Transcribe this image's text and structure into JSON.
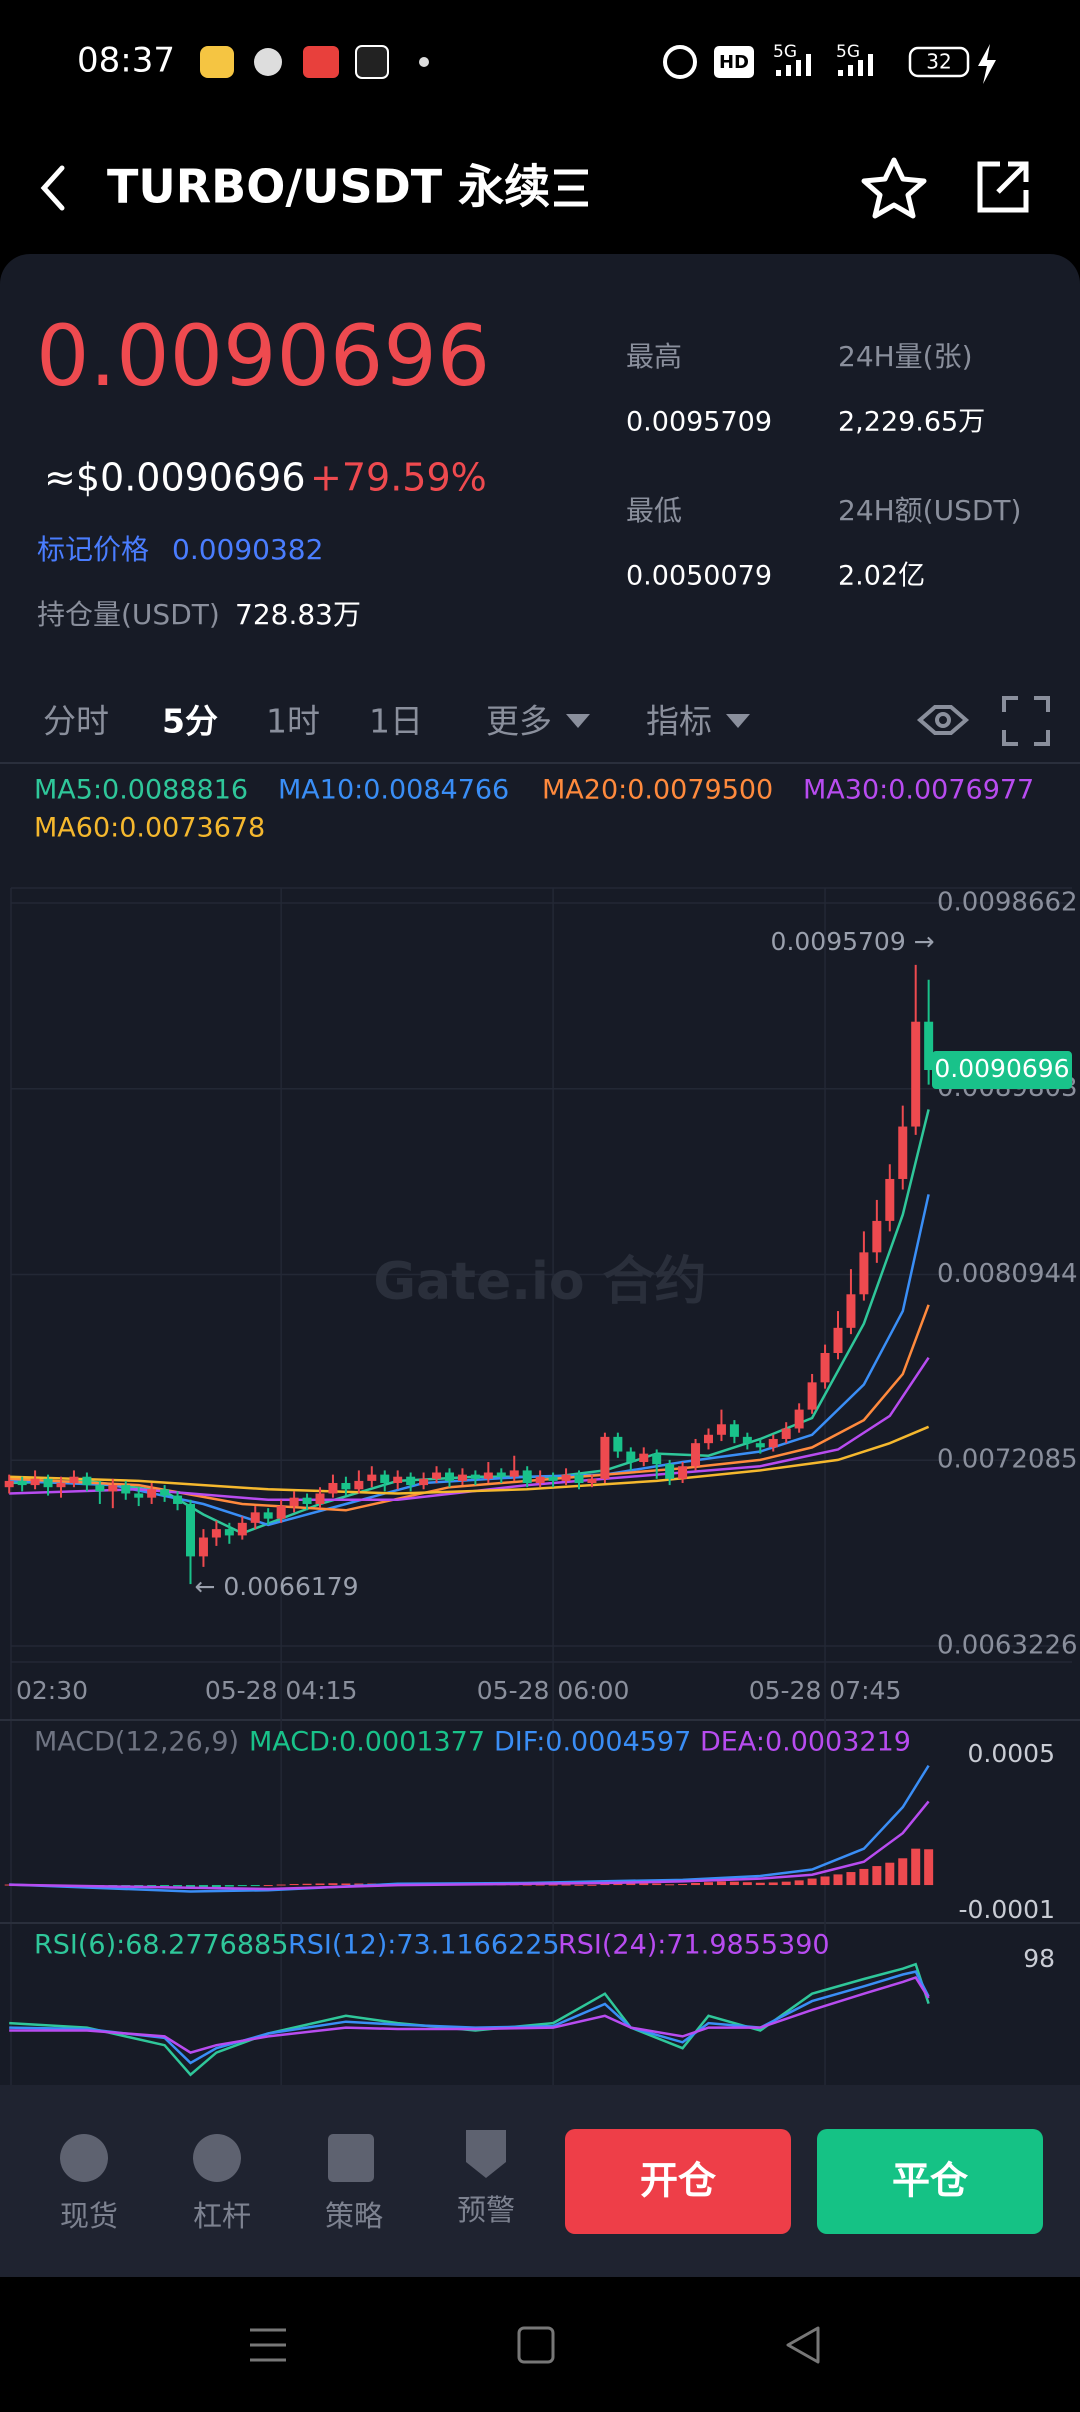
{
  "status_bar": {
    "time": "08:37",
    "network_a": "5G",
    "network_b": "5G",
    "hd": "HD",
    "battery": "32"
  },
  "header": {
    "title": "TURBO/USDT 永续"
  },
  "ticker": {
    "last_price": "0.0090696",
    "usd_price": "≈$0.0090696",
    "change": "+79.59%",
    "mark_price_label": "标记价格",
    "mark_price": "0.0090382",
    "open_interest_label": "持仓量(USDT)",
    "open_interest": "728.83万",
    "stats": [
      {
        "label": "最高",
        "value": "0.0095709"
      },
      {
        "label": "24H量(张)",
        "value": "2,229.65万"
      },
      {
        "label": "最低",
        "value": "0.0050079"
      },
      {
        "label": "24H额(USDT)",
        "value": "2.02亿"
      }
    ]
  },
  "tabs": [
    "分时",
    "5分",
    "1时",
    "1日",
    "更多",
    "指标"
  ],
  "chart_data": [
    {
      "type": "candlestick",
      "watermark": "Gate.io 合约",
      "up_color": "#ee4a4f",
      "down_color": "#19c28a",
      "ylim": [
        0.0062463,
        0.0099377
      ],
      "yticks": [
        0.0098662,
        0.0089803,
        0.0080944,
        0.0072085,
        0.0063226
      ],
      "xticks": [
        {
          "value": 0,
          "label": "02:30"
        },
        {
          "value": 21,
          "label": "05-28 04:15"
        },
        {
          "value": 42,
          "label": "05-28 06:00"
        },
        {
          "value": 63,
          "label": "05-28 07:45"
        }
      ],
      "annotations": [
        {
          "value": 0.0095709,
          "label": "0.0095709 →"
        },
        {
          "value": 0.0066179,
          "label": "← 0.0066179"
        }
      ],
      "candles": [
        {
          "open": 0.00708,
          "high": 0.00714,
          "low": 0.00705,
          "close": 0.00711
        },
        {
          "open": 0.00711,
          "high": 0.00713,
          "low": 0.00706,
          "close": 0.00709
        },
        {
          "open": 0.00709,
          "high": 0.00716,
          "low": 0.00707,
          "close": 0.00712
        },
        {
          "open": 0.00712,
          "high": 0.00714,
          "low": 0.00704,
          "close": 0.00708
        },
        {
          "open": 0.00708,
          "high": 0.00713,
          "low": 0.00703,
          "close": 0.0071
        },
        {
          "open": 0.0071,
          "high": 0.00716,
          "low": 0.00708,
          "close": 0.00713
        },
        {
          "open": 0.00713,
          "high": 0.00715,
          "low": 0.00706,
          "close": 0.00709
        },
        {
          "open": 0.00709,
          "high": 0.00711,
          "low": 0.007,
          "close": 0.00706
        },
        {
          "open": 0.00706,
          "high": 0.00712,
          "low": 0.00698,
          "close": 0.00709
        },
        {
          "open": 0.00709,
          "high": 0.00711,
          "low": 0.00702,
          "close": 0.00705
        },
        {
          "open": 0.00705,
          "high": 0.00708,
          "low": 0.00699,
          "close": 0.00703
        },
        {
          "open": 0.00703,
          "high": 0.0071,
          "low": 0.007,
          "close": 0.00707
        },
        {
          "open": 0.00707,
          "high": 0.00709,
          "low": 0.00701,
          "close": 0.00704
        },
        {
          "open": 0.00704,
          "high": 0.00706,
          "low": 0.00697,
          "close": 0.007
        },
        {
          "open": 0.007,
          "high": 0.00702,
          "low": 0.0066179,
          "close": 0.00675
        },
        {
          "open": 0.00675,
          "high": 0.00688,
          "low": 0.0067,
          "close": 0.00684
        },
        {
          "open": 0.00684,
          "high": 0.00692,
          "low": 0.0068,
          "close": 0.00688
        },
        {
          "open": 0.00688,
          "high": 0.00691,
          "low": 0.00681,
          "close": 0.00685
        },
        {
          "open": 0.00685,
          "high": 0.00694,
          "low": 0.00683,
          "close": 0.00691
        },
        {
          "open": 0.00691,
          "high": 0.00699,
          "low": 0.00688,
          "close": 0.00696
        },
        {
          "open": 0.00696,
          "high": 0.00698,
          "low": 0.0069,
          "close": 0.00693
        },
        {
          "open": 0.00693,
          "high": 0.00702,
          "low": 0.00691,
          "close": 0.00699
        },
        {
          "open": 0.00699,
          "high": 0.00706,
          "low": 0.00696,
          "close": 0.00703
        },
        {
          "open": 0.00703,
          "high": 0.00705,
          "low": 0.00697,
          "close": 0.007
        },
        {
          "open": 0.007,
          "high": 0.00708,
          "low": 0.00698,
          "close": 0.00705
        },
        {
          "open": 0.00705,
          "high": 0.00714,
          "low": 0.00703,
          "close": 0.0071
        },
        {
          "open": 0.0071,
          "high": 0.00713,
          "low": 0.00704,
          "close": 0.00707
        },
        {
          "open": 0.00707,
          "high": 0.00716,
          "low": 0.00705,
          "close": 0.00711
        },
        {
          "open": 0.00711,
          "high": 0.00718,
          "low": 0.00708,
          "close": 0.00714
        },
        {
          "open": 0.00714,
          "high": 0.00716,
          "low": 0.00706,
          "close": 0.0071
        },
        {
          "open": 0.0071,
          "high": 0.00716,
          "low": 0.00707,
          "close": 0.00713
        },
        {
          "open": 0.00713,
          "high": 0.00715,
          "low": 0.00706,
          "close": 0.00709
        },
        {
          "open": 0.00709,
          "high": 0.00715,
          "low": 0.00707,
          "close": 0.00712
        },
        {
          "open": 0.00712,
          "high": 0.00718,
          "low": 0.0071,
          "close": 0.00715
        },
        {
          "open": 0.00715,
          "high": 0.00717,
          "low": 0.00708,
          "close": 0.00711
        },
        {
          "open": 0.00711,
          "high": 0.00717,
          "low": 0.00709,
          "close": 0.00714
        },
        {
          "open": 0.00714,
          "high": 0.00716,
          "low": 0.00709,
          "close": 0.00712
        },
        {
          "open": 0.00712,
          "high": 0.0072,
          "low": 0.0071,
          "close": 0.00715
        },
        {
          "open": 0.00715,
          "high": 0.00717,
          "low": 0.0071,
          "close": 0.00713
        },
        {
          "open": 0.00713,
          "high": 0.00723,
          "low": 0.00711,
          "close": 0.00716
        },
        {
          "open": 0.00716,
          "high": 0.00718,
          "low": 0.00708,
          "close": 0.0071
        },
        {
          "open": 0.0071,
          "high": 0.00716,
          "low": 0.00708,
          "close": 0.00713
        },
        {
          "open": 0.00713,
          "high": 0.00715,
          "low": 0.00708,
          "close": 0.00711
        },
        {
          "open": 0.00711,
          "high": 0.00717,
          "low": 0.00709,
          "close": 0.00714
        },
        {
          "open": 0.00714,
          "high": 0.00716,
          "low": 0.00707,
          "close": 0.0071
        },
        {
          "open": 0.0071,
          "high": 0.00714,
          "low": 0.00708,
          "close": 0.00712
        },
        {
          "open": 0.00712,
          "high": 0.00734,
          "low": 0.0071,
          "close": 0.00732
        },
        {
          "open": 0.00732,
          "high": 0.00734,
          "low": 0.00722,
          "close": 0.00725
        },
        {
          "open": 0.00725,
          "high": 0.00727,
          "low": 0.00716,
          "close": 0.0072
        },
        {
          "open": 0.0072,
          "high": 0.00727,
          "low": 0.00718,
          "close": 0.00724
        },
        {
          "open": 0.00724,
          "high": 0.00726,
          "low": 0.00712,
          "close": 0.00719
        },
        {
          "open": 0.00719,
          "high": 0.00721,
          "low": 0.00709,
          "close": 0.00712
        },
        {
          "open": 0.00712,
          "high": 0.0072,
          "low": 0.0071,
          "close": 0.00718
        },
        {
          "open": 0.00718,
          "high": 0.00731,
          "low": 0.00716,
          "close": 0.00729
        },
        {
          "open": 0.00729,
          "high": 0.00736,
          "low": 0.00726,
          "close": 0.00733
        },
        {
          "open": 0.00733,
          "high": 0.00745,
          "low": 0.0073,
          "close": 0.00738
        },
        {
          "open": 0.00738,
          "high": 0.0074,
          "low": 0.00729,
          "close": 0.00732
        },
        {
          "open": 0.00732,
          "high": 0.00734,
          "low": 0.00726,
          "close": 0.00729
        },
        {
          "open": 0.00729,
          "high": 0.00731,
          "low": 0.00724,
          "close": 0.00727
        },
        {
          "open": 0.00727,
          "high": 0.00733,
          "low": 0.00725,
          "close": 0.00731
        },
        {
          "open": 0.00731,
          "high": 0.00739,
          "low": 0.00729,
          "close": 0.00736
        },
        {
          "open": 0.00736,
          "high": 0.00748,
          "low": 0.00734,
          "close": 0.00745
        },
        {
          "open": 0.00745,
          "high": 0.00762,
          "low": 0.00743,
          "close": 0.00758
        },
        {
          "open": 0.00758,
          "high": 0.00776,
          "low": 0.00755,
          "close": 0.00772
        },
        {
          "open": 0.00772,
          "high": 0.00792,
          "low": 0.00769,
          "close": 0.00784
        },
        {
          "open": 0.00784,
          "high": 0.00812,
          "low": 0.00781,
          "close": 0.008
        },
        {
          "open": 0.008,
          "high": 0.0083,
          "low": 0.00797,
          "close": 0.0082
        },
        {
          "open": 0.0082,
          "high": 0.00845,
          "low": 0.00815,
          "close": 0.00835
        },
        {
          "open": 0.00835,
          "high": 0.00862,
          "low": 0.0083,
          "close": 0.00855
        },
        {
          "open": 0.00855,
          "high": 0.0089,
          "low": 0.0085,
          "close": 0.0088
        },
        {
          "open": 0.0088,
          "high": 0.0095709,
          "low": 0.00876,
          "close": 0.0093
        },
        {
          "open": 0.0093,
          "high": 0.0095,
          "low": 0.009,
          "close": 0.0090696
        }
      ],
      "series": [
        {
          "name": "MA5:0.0088816",
          "color": "#2fc79a",
          "x": [
            0,
            6,
            12,
            15,
            18,
            24,
            30,
            36,
            42,
            46,
            50,
            54,
            58,
            62,
            66,
            69,
            71
          ],
          "values": [
            0.0071,
            0.00711,
            0.00706,
            0.00695,
            0.00686,
            0.007,
            0.00711,
            0.00713,
            0.00713,
            0.00716,
            0.00724,
            0.00723,
            0.00731,
            0.00741,
            0.00786,
            0.00838,
            0.0088816
          ]
        },
        {
          "name": "MA10:0.0084766",
          "color": "#3a8ef6",
          "x": [
            0,
            8,
            15,
            20,
            26,
            32,
            40,
            46,
            52,
            58,
            62,
            66,
            69,
            71
          ],
          "values": [
            0.00711,
            0.00709,
            0.007,
            0.0069,
            0.007,
            0.0071,
            0.00713,
            0.00714,
            0.0072,
            0.00725,
            0.00733,
            0.00757,
            0.00792,
            0.0084766
          ]
        },
        {
          "name": "MA20:0.0079500",
          "color": "#ff8a3d",
          "x": [
            0,
            10,
            18,
            26,
            34,
            44,
            52,
            58,
            62,
            66,
            69,
            71
          ],
          "values": [
            0.00712,
            0.00709,
            0.007,
            0.00697,
            0.00708,
            0.00713,
            0.00717,
            0.00721,
            0.00727,
            0.0074,
            0.00762,
            0.00795
          ]
        },
        {
          "name": "MA30:0.0076977",
          "color": "#b84cf0",
          "x": [
            0,
            10,
            20,
            30,
            40,
            50,
            58,
            64,
            68,
            71
          ],
          "values": [
            0.00705,
            0.00707,
            0.00702,
            0.00702,
            0.00709,
            0.00714,
            0.00718,
            0.00726,
            0.00742,
            0.0076977
          ]
        },
        {
          "name": "MA60:0.0073678",
          "color": "#f5b82e",
          "x": [
            0,
            10,
            20,
            30,
            40,
            50,
            58,
            64,
            68,
            71
          ],
          "values": [
            0.00713,
            0.00711,
            0.00707,
            0.00705,
            0.00707,
            0.00711,
            0.00716,
            0.00721,
            0.00729,
            0.0073678
          ]
        }
      ]
    },
    {
      "type": "macd",
      "title": "MACD(12,26,9)",
      "up_color": "#ee4a4f",
      "down_color": "#19c28a",
      "ylim": [
        -0.000146,
        0.000635
      ],
      "yticks": [
        0.0005,
        -0.0001
      ],
      "series": [
        {
          "name": "MACD:0.0001377",
          "color": "#19c28a",
          "values": [
            2e-06,
            1e-06,
            2e-06,
            1e-06,
            0,
            -1e-06,
            -2e-06,
            -3e-06,
            -3e-06,
            -4e-06,
            -4e-06,
            -3e-06,
            -4e-06,
            -5e-06,
            -1.2e-05,
            -1e-05,
            -8e-06,
            -6e-06,
            -4e-06,
            -2e-06,
            0,
            2e-06,
            4e-06,
            5e-06,
            6e-06,
            7e-06,
            6e-06,
            6e-06,
            6e-06,
            5e-06,
            5e-06,
            4e-06,
            4e-06,
            4e-06,
            4e-06,
            3e-06,
            3e-06,
            3e-06,
            3e-06,
            3e-06,
            2e-06,
            2e-06,
            2e-06,
            2e-06,
            1e-06,
            1e-06,
            1e-05,
            1.1e-05,
            9e-06,
            8e-06,
            6e-06,
            3e-06,
            4e-06,
            8e-06,
            1.1e-05,
            1.4e-05,
            1.3e-05,
            1.1e-05,
            9e-06,
            1e-05,
            1.3e-05,
            1.8e-05,
            2.5e-05,
            3.3e-05,
            4.1e-05,
            5e-05,
            6.2e-05,
            7.3e-05,
            8.6e-05,
            0.000103,
            0.00014,
            0.0001377
          ]
        },
        {
          "name": "DIF:0.0004597",
          "color": "#3a8ef6",
          "x": [
            0,
            14,
            20,
            30,
            40,
            46,
            52,
            58,
            62,
            66,
            69,
            71
          ],
          "values": [
            2e-06,
            -2.5e-05,
            -2e-05,
            5e-06,
            8e-06,
            1.5e-05,
            2e-05,
            3.5e-05,
            6e-05,
            0.00014,
            0.0003,
            0.0004597
          ]
        },
        {
          "name": "DEA:0.0003219",
          "color": "#b84cf0",
          "x": [
            0,
            14,
            20,
            30,
            40,
            46,
            52,
            58,
            62,
            66,
            69,
            71
          ],
          "values": [
            1e-06,
            -1e-05,
            -1.5e-05,
            0,
            5e-06,
            8e-06,
            1.4e-05,
            2.5e-05,
            4e-05,
            9e-05,
            0.0002,
            0.0003219
          ]
        }
      ]
    },
    {
      "type": "line",
      "ylim": [
        13,
        123
      ],
      "yticks": [
        98
      ],
      "series": [
        {
          "name": "RSI(6):68.2776885",
          "color": "#2fc79a",
          "x": [
            0,
            6,
            12,
            14,
            16,
            20,
            26,
            30,
            36,
            42,
            46,
            48,
            52,
            54,
            58,
            62,
            66,
            69,
            70,
            71
          ],
          "values": [
            55,
            52,
            40,
            20,
            35,
            48,
            60,
            55,
            50,
            55,
            75,
            52,
            38,
            60,
            50,
            75,
            85,
            92,
            95,
            68.2776885
          ]
        },
        {
          "name": "RSI(12):73.1166225",
          "color": "#3a8ef6",
          "x": [
            0,
            6,
            12,
            14,
            16,
            20,
            26,
            30,
            36,
            42,
            46,
            48,
            52,
            54,
            58,
            62,
            66,
            69,
            70,
            71
          ],
          "values": [
            52,
            51,
            45,
            28,
            38,
            48,
            56,
            54,
            52,
            53,
            68,
            52,
            42,
            55,
            52,
            70,
            80,
            88,
            90,
            73.1166225
          ]
        },
        {
          "name": "RSI(24):71.9855390",
          "color": "#b84cf0",
          "x": [
            0,
            6,
            12,
            14,
            16,
            20,
            26,
            30,
            36,
            42,
            46,
            48,
            52,
            54,
            58,
            62,
            66,
            69,
            70,
            71
          ],
          "values": [
            50,
            50,
            46,
            35,
            40,
            46,
            52,
            51,
            51,
            52,
            60,
            52,
            46,
            52,
            52,
            64,
            75,
            83,
            86,
            71.985539
          ]
        }
      ]
    }
  ],
  "bottom_bar": {
    "items": [
      "现货",
      "杠杆",
      "策略",
      "预警"
    ],
    "open_button": "开仓",
    "close_button": "平仓"
  }
}
